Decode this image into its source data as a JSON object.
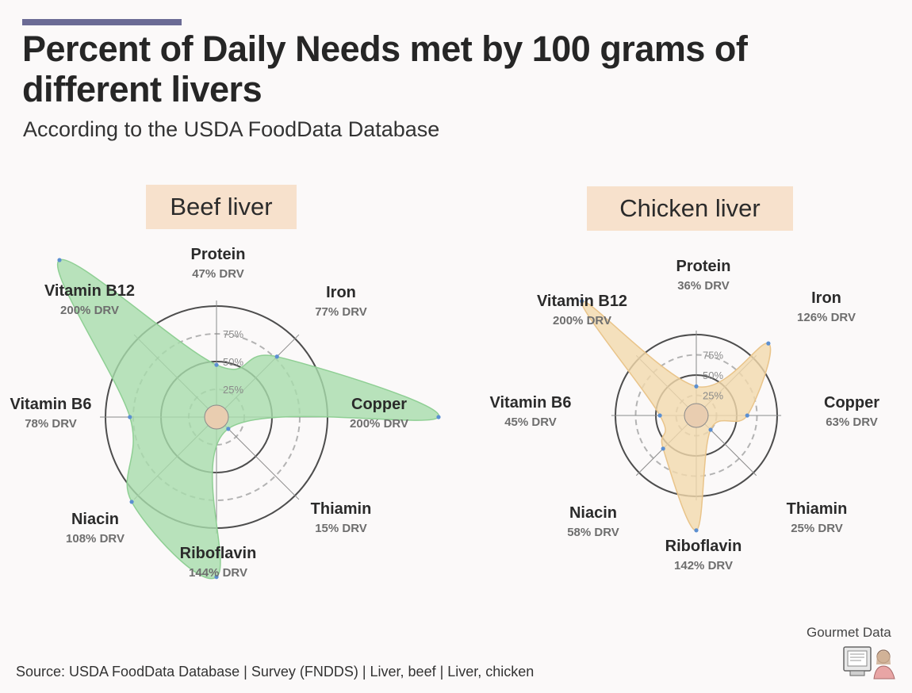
{
  "header": {
    "title": "Percent of Daily Needs met by 100 grams of different livers",
    "subtitle": "According to the USDA FoodData Database"
  },
  "footer": {
    "source": "Source: USDA FoodData Database | Survey (FNDDS) | Liver, beef | Liver, chicken",
    "brand": "Gourmet Data"
  },
  "colors": {
    "beef_fill": "#a8dcab",
    "beef_stroke": "#8fcf94",
    "chicken_fill": "#f2d9ad",
    "chicken_stroke": "#e9c48a",
    "ring": "#4d4d4d",
    "dashed_ring": "#b3b3b3",
    "point": "#5b8fd1",
    "center": "#e9cdb0",
    "label_bg": "#f7e1cc",
    "accent_bar": "#6b6b95"
  },
  "chart_data": [
    {
      "type": "radar",
      "title": "Beef liver",
      "unit_suffix": "% DRV",
      "ring_labels": [
        "25%",
        "50%",
        "75%"
      ],
      "axes": [
        "Protein",
        "Iron",
        "Copper",
        "Thiamin",
        "Riboflavin",
        "Niacin",
        "Vitamin B6",
        "Vitamin B12"
      ],
      "values": [
        47,
        77,
        200,
        15,
        144,
        108,
        78,
        200
      ],
      "value_labels": [
        "47% DRV",
        "77% DRV",
        "200% DRV",
        "15% DRV",
        "144% DRV",
        "108% DRV",
        "78% DRV",
        "200% DRV"
      ]
    },
    {
      "type": "radar",
      "title": "Chicken liver",
      "unit_suffix": "% DRV",
      "ring_labels": [
        "25%",
        "50%",
        "75%"
      ],
      "axes": [
        "Protein",
        "Iron",
        "Copper",
        "Thiamin",
        "Riboflavin",
        "Niacin",
        "Vitamin B6",
        "Vitamin B12"
      ],
      "values": [
        36,
        126,
        63,
        25,
        142,
        58,
        45,
        200
      ],
      "value_labels": [
        "36% DRV",
        "126% DRV",
        "63% DRV",
        "25% DRV",
        "142% DRV",
        "58% DRV",
        "45% DRV",
        "200% DRV"
      ]
    }
  ]
}
